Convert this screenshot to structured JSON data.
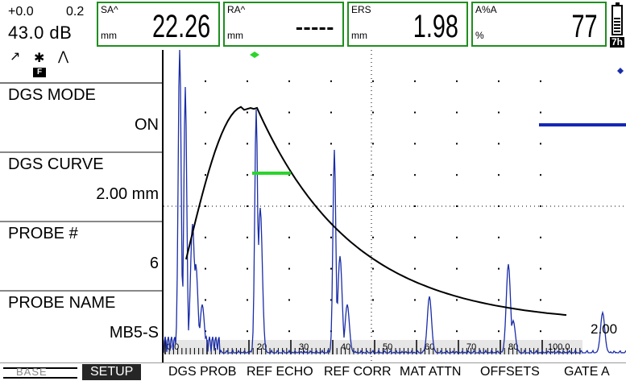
{
  "topbar": {
    "gain_step": "+0.0",
    "gain_range": "0.2",
    "gain_db": "43.0 dB",
    "readings": [
      {
        "label": "SA^",
        "unit": "mm",
        "value": "22.26"
      },
      {
        "label": "RA^",
        "unit": "mm",
        "value": "-----"
      },
      {
        "label": "ERS",
        "unit": "mm",
        "value": "1.98"
      },
      {
        "label": "A%A",
        "unit": "%",
        "value": "77"
      }
    ],
    "battery_time": "7h",
    "battery_level": 0.6
  },
  "left_panel": {
    "mode_icons": [
      "rectify-icon",
      "freeze-icon",
      "peak-icon"
    ],
    "mode_glyphs": {
      "rectify": "↗",
      "freeze": "✱",
      "peak": "⋀",
      "badge": "F"
    },
    "params": [
      {
        "name": "DGS MODE",
        "value": "ON"
      },
      {
        "name": "DGS CURVE",
        "value": "2.00 mm"
      },
      {
        "name": "PROBE #",
        "value": "6"
      },
      {
        "name": "PROBE NAME",
        "value": "MB5-S"
      }
    ]
  },
  "scan": {
    "colors": {
      "echo": "#1a2da8",
      "curve": "#000000",
      "gate_a": "#2cd42c",
      "gate_b": "#1428b4",
      "marker_green": "#2cd42c",
      "marker_blue": "#1a2da8"
    },
    "axis_labels": [
      "0.0",
      "20",
      "30",
      "40",
      "50",
      "60",
      "70",
      "80",
      "100.0"
    ],
    "corner_label": "2.00",
    "x_range": [
      0,
      100
    ]
  },
  "menu": {
    "group_label": "BASE",
    "items": [
      "SETUP",
      "DGS PROB",
      "REF ECHO",
      "REF CORR",
      "MAT ATTN",
      "OFFSETS",
      "GATE A"
    ],
    "active_index": 0
  }
}
